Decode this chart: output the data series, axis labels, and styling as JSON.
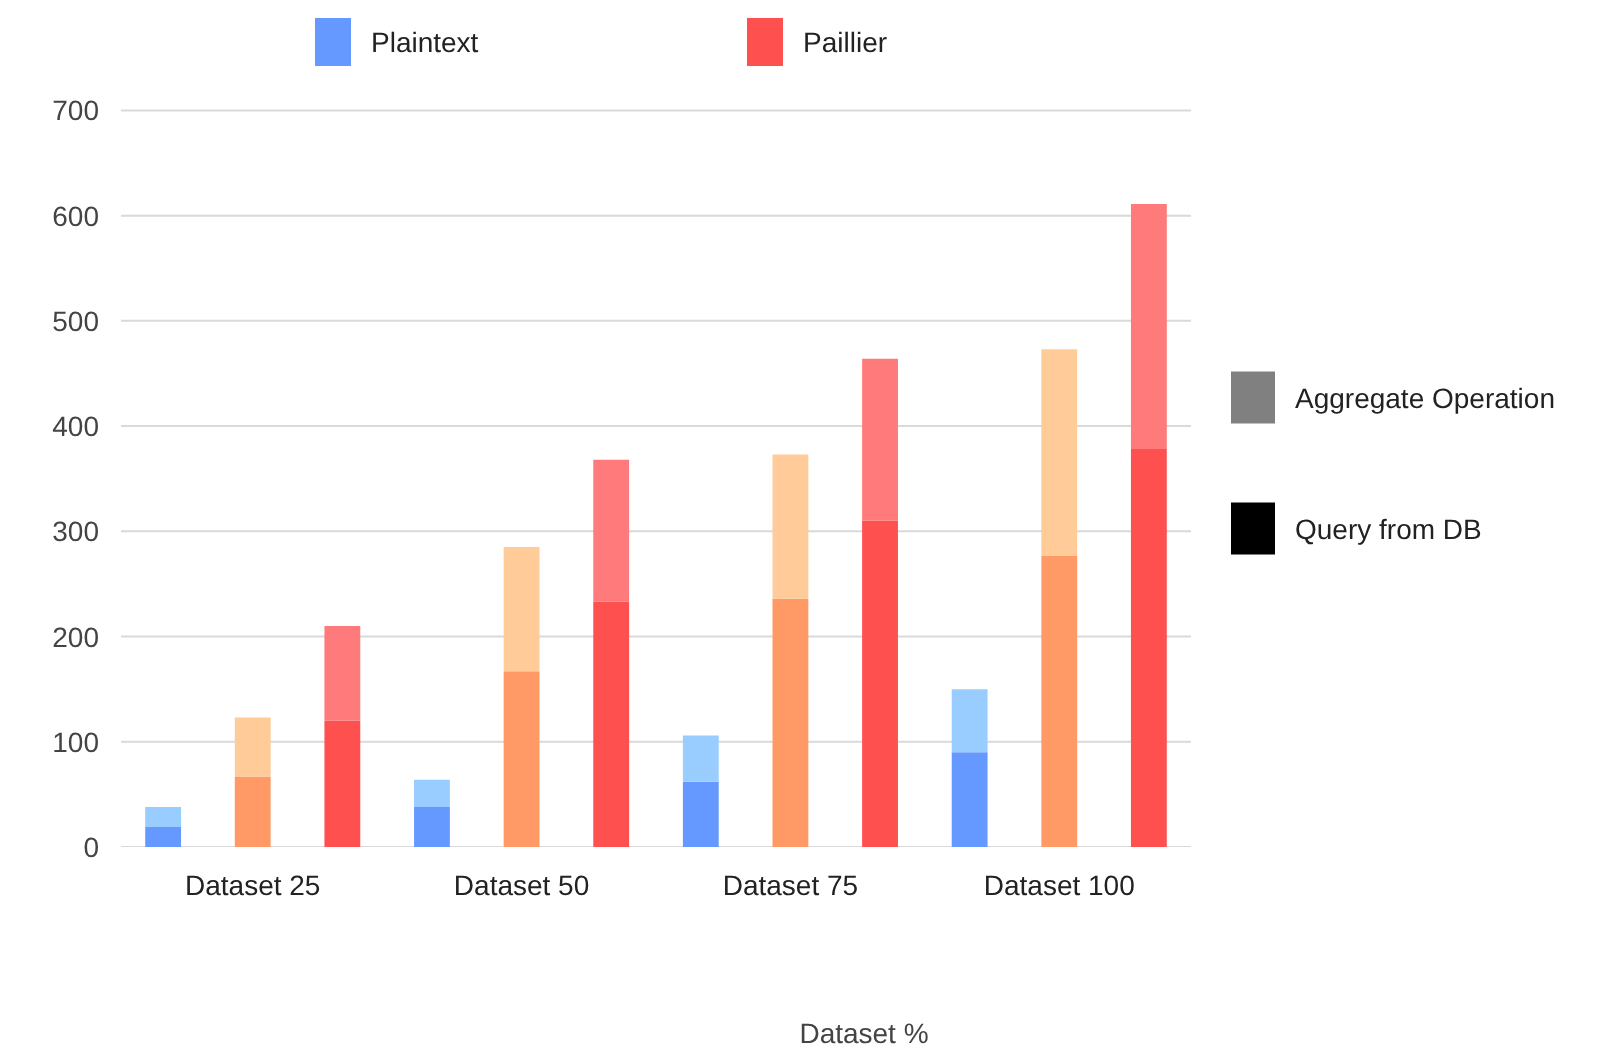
{
  "chart_data": {
    "type": "bar",
    "stacked": true,
    "xlabel": "Dataset %",
    "categories": [
      null,
      "Dataset 25",
      null,
      null,
      "Dataset 50",
      null,
      null,
      "Dataset 75",
      null,
      null,
      "Dataset 100",
      null
    ],
    "ylim": [
      0,
      700
    ],
    "yticks": [
      0,
      100,
      200,
      300,
      400,
      500,
      600,
      700
    ],
    "grid": "y",
    "legend": "top",
    "series": [
      {
        "name": "Plaintext",
        "color": "#6699ff",
        "values": [
          19,
          null,
          null,
          38,
          null,
          null,
          62,
          null,
          null,
          90,
          null,
          null
        ]
      },
      {
        "color": "#99ccff",
        "values": [
          19,
          null,
          null,
          26,
          null,
          null,
          44,
          null,
          null,
          60,
          null,
          null
        ]
      },
      {
        "color": "#ff9966",
        "values": [
          null,
          67,
          null,
          null,
          167,
          null,
          null,
          236,
          null,
          null,
          277,
          null
        ]
      },
      {
        "color": "#ffcc99",
        "values": [
          null,
          56,
          null,
          null,
          118,
          null,
          null,
          137,
          null,
          null,
          196,
          null
        ]
      },
      {
        "name": "Paillier",
        "color": "#ff5050",
        "values": [
          null,
          null,
          120,
          null,
          null,
          233,
          null,
          null,
          310,
          null,
          null,
          379
        ]
      },
      {
        "color": "#ff7a7a",
        "values": [
          null,
          null,
          90,
          null,
          null,
          135,
          null,
          null,
          154,
          null,
          null,
          232
        ]
      },
      {
        "name": "Aggregate Operation",
        "color": "#808080",
        "values": [
          null,
          null,
          null,
          null,
          null,
          null,
          null,
          null,
          null,
          null,
          null,
          null
        ]
      },
      {
        "name": "Query from DB",
        "color": "#000000",
        "values": [
          null,
          null,
          null,
          null,
          null,
          null,
          null,
          null,
          null,
          null,
          null,
          null
        ]
      }
    ]
  }
}
